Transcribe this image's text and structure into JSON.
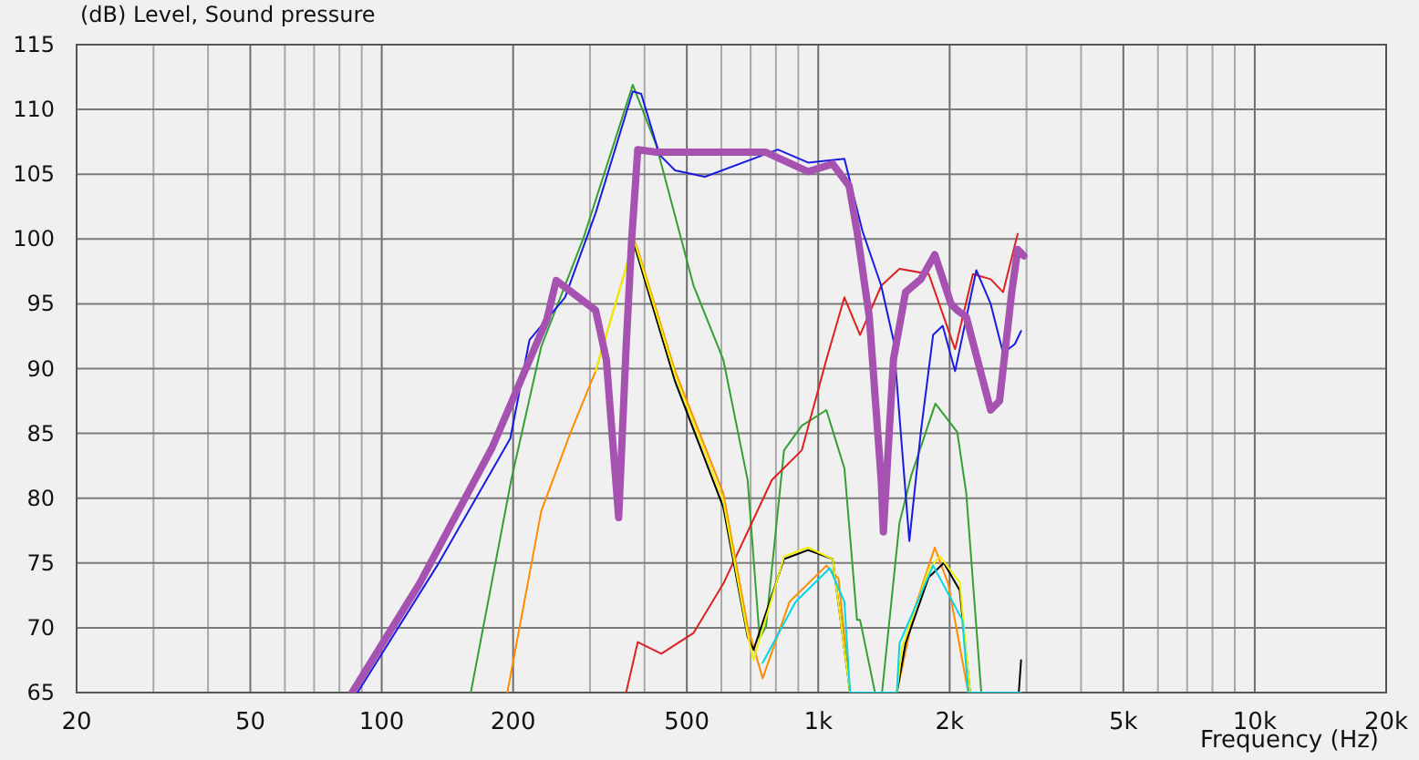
{
  "chart_data": {
    "type": "line",
    "xlabel": "Frequency  (Hz)",
    "ylabel": "(dB)  Level, Sound pressure",
    "log": "x",
    "grid": true,
    "line_style": "solid",
    "xlim": [
      20,
      20000
    ],
    "ylim": [
      65,
      115
    ],
    "xticks": [
      20,
      {
        "value": 30,
        "label": null
      },
      {
        "value": 40,
        "label": null
      },
      50,
      {
        "value": 60,
        "label": null
      },
      {
        "value": 70,
        "label": null
      },
      {
        "value": 80,
        "label": null
      },
      {
        "value": 90,
        "label": null
      },
      100,
      200,
      {
        "value": 300,
        "label": null
      },
      {
        "value": 400,
        "label": null
      },
      500,
      {
        "value": 600,
        "label": null
      },
      {
        "value": 700,
        "label": null
      },
      {
        "value": 800,
        "label": null
      },
      {
        "value": 900,
        "label": null
      },
      {
        "value": 1000,
        "label": "1k"
      },
      {
        "value": 2000,
        "label": "2k"
      },
      {
        "value": 3000,
        "label": null
      },
      {
        "value": 4000,
        "label": null
      },
      {
        "value": 5000,
        "label": "5k"
      },
      {
        "value": 6000,
        "label": null
      },
      {
        "value": 7000,
        "label": null
      },
      {
        "value": 8000,
        "label": null
      },
      {
        "value": 9000,
        "label": null
      },
      {
        "value": 10000,
        "label": "10k"
      },
      {
        "value": 20000,
        "label": "20k"
      }
    ],
    "yticks": [
      65,
      70,
      75,
      80,
      85,
      90,
      95,
      100,
      105,
      110,
      115
    ],
    "series": [
      {
        "color": "#33a033",
        "x": [
          160,
          198,
          232,
          290,
          376,
          426,
          518,
          606,
          689,
          734,
          759,
          835,
          917,
          1044,
          1148,
          1227,
          1247,
          1349,
          1400,
          1535,
          1635,
          1855,
          2082,
          2183,
          2363
        ],
        "values": [
          65,
          81.4,
          91.7,
          100.1,
          111.9,
          107.2,
          96.4,
          90.7,
          81.4,
          69.2,
          70.1,
          83.7,
          85.6,
          86.8,
          82.3,
          70.6,
          70.6,
          65,
          65,
          78.1,
          81.8,
          87.3,
          85.1,
          80.4,
          65
        ]
      },
      {
        "color": "#dd2020",
        "x": [
          363,
          386,
          437,
          518,
          606,
          783,
          917,
          1044,
          1148,
          1247,
          1394,
          1535,
          1791,
          2058,
          2261,
          2483,
          2652,
          2864
        ],
        "values": [
          65,
          68.9,
          68,
          69.6,
          73.4,
          81.4,
          83.7,
          90.7,
          95.5,
          92.6,
          96.4,
          97.7,
          97.3,
          91.5,
          97.3,
          96.9,
          95.9,
          100.4
        ]
      },
      {
        "color": "#ff8c00",
        "x": [
          194,
          232,
          271,
          309,
          363,
          377,
          386,
          470,
          606,
          689,
          746,
          859,
          1044,
          1113,
          1183,
          1514,
          1663,
          1849,
          1985,
          2206
        ],
        "values": [
          65,
          79,
          85.1,
          89.8,
          97.8,
          100.1,
          99.2,
          89.8,
          80.4,
          70.1,
          66.1,
          72,
          74.8,
          73.8,
          65,
          65,
          71.5,
          76.2,
          73.4,
          65
        ]
      },
      {
        "color": "#000000",
        "x": [
          377,
          470,
          606,
          689,
          711,
          835,
          948,
          1079,
          1183,
          1514,
          1585,
          1791,
          1940,
          2109,
          2227,
          2880,
          2915
        ],
        "values": [
          99.8,
          89,
          79.3,
          69.3,
          68.3,
          75.3,
          76,
          75.3,
          65,
          65,
          68.8,
          73.9,
          75,
          72.9,
          65,
          65,
          67.5
        ]
      },
      {
        "color": "#f0f000",
        "x": [
          309,
          363,
          377,
          470,
          606,
          689,
          711,
          835,
          948,
          1079,
          1183,
          1514,
          1556,
          1791,
          1900,
          2109,
          2227
        ],
        "values": [
          89.8,
          97.8,
          100.1,
          89.5,
          79.8,
          69.5,
          67.5,
          75.5,
          76.2,
          75.3,
          65,
          65,
          68.5,
          74.5,
          75.5,
          73.5,
          65
        ]
      },
      {
        "color": "#00d8e8",
        "x": [
          746,
          887,
          1063,
          1148,
          1183,
          1514,
          1535,
          1833,
          2139,
          2206,
          2915
        ],
        "values": [
          67.3,
          72,
          74.6,
          72,
          65,
          65,
          68.8,
          74.8,
          70.6,
          65,
          65
        ]
      },
      {
        "color": "#1a1ae0",
        "x": [
          88,
          134,
          197,
          218,
          263,
          309,
          376,
          393,
          433,
          470,
          550,
          808,
          948,
          1148,
          1263,
          1394,
          1487,
          1617,
          1718,
          1833,
          1928,
          2058,
          2302,
          2483,
          2652,
          2822,
          2915
        ],
        "values": [
          65,
          74.8,
          84.6,
          92.2,
          95.5,
          102,
          111.4,
          111.2,
          106.5,
          105.3,
          104.8,
          106.9,
          105.9,
          106.2,
          100.6,
          96.4,
          92.2,
          76.7,
          85.1,
          92.6,
          93.3,
          89.8,
          97.6,
          95,
          91.2,
          91.9,
          92.9
        ]
      },
      {
        "color": "#a652b0",
        "x": [
          85.5,
          122,
          179,
          239,
          251,
          309,
          327,
          349,
          363,
          374,
          386,
          426,
          759,
          948,
          1079,
          1177,
          1227,
          1309,
          1394,
          1410,
          1487,
          1585,
          1718,
          1849,
          2015,
          2082,
          2183,
          2483,
          2602,
          2775,
          2864,
          2958
        ],
        "values": [
          65,
          73.4,
          83.9,
          93.8,
          96.8,
          94.5,
          90.7,
          78.5,
          91.7,
          100.1,
          106.9,
          106.7,
          106.7,
          105.2,
          105.8,
          104.1,
          100.6,
          94,
          81.4,
          77.4,
          90.7,
          95.9,
          96.9,
          98.8,
          95,
          94.5,
          94,
          86.8,
          87.5,
          95.9,
          99.2,
          98.7
        ]
      }
    ]
  }
}
